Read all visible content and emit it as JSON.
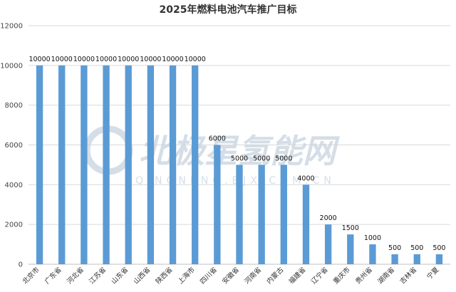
{
  "chart_data": {
    "type": "bar",
    "title": "2025年燃料电池汽车推广目标",
    "categories": [
      "北京市",
      "广东省",
      "河北省",
      "江苏省",
      "山东省",
      "山西省",
      "陕西省",
      "上海市",
      "四川省",
      "安徽省",
      "河南省",
      "内蒙古",
      "福建省",
      "辽宁省",
      "重庆市",
      "贵州省",
      "湖南省",
      "吉林省",
      "宁夏"
    ],
    "values": [
      10000,
      10000,
      10000,
      10000,
      10000,
      10000,
      10000,
      10000,
      6000,
      5000,
      5000,
      5000,
      4000,
      2000,
      1500,
      1000,
      500,
      500,
      500
    ],
    "data_labels": [
      "10000",
      "10000",
      "10000",
      "10000",
      "10000",
      "10000",
      "10000",
      "10000",
      "6000",
      "5000",
      "5000",
      "5000",
      "4000",
      "2000",
      "1500",
      "1000",
      "500",
      "500",
      "500"
    ],
    "yticks": [
      "0",
      "2000",
      "4000",
      "6000",
      "8000",
      "10000",
      "12000"
    ],
    "ylim": [
      0,
      12000
    ],
    "xlabel": "",
    "ylabel": "",
    "grid": true,
    "legend": "none",
    "bar_color": "#5b9bd5",
    "grid_color": "#d9d9d9"
  },
  "watermark": {
    "text": "北极星氢能网",
    "subtext": "QINGNENG.BJX.COM.CN",
    "color": "#c8d4e0"
  }
}
